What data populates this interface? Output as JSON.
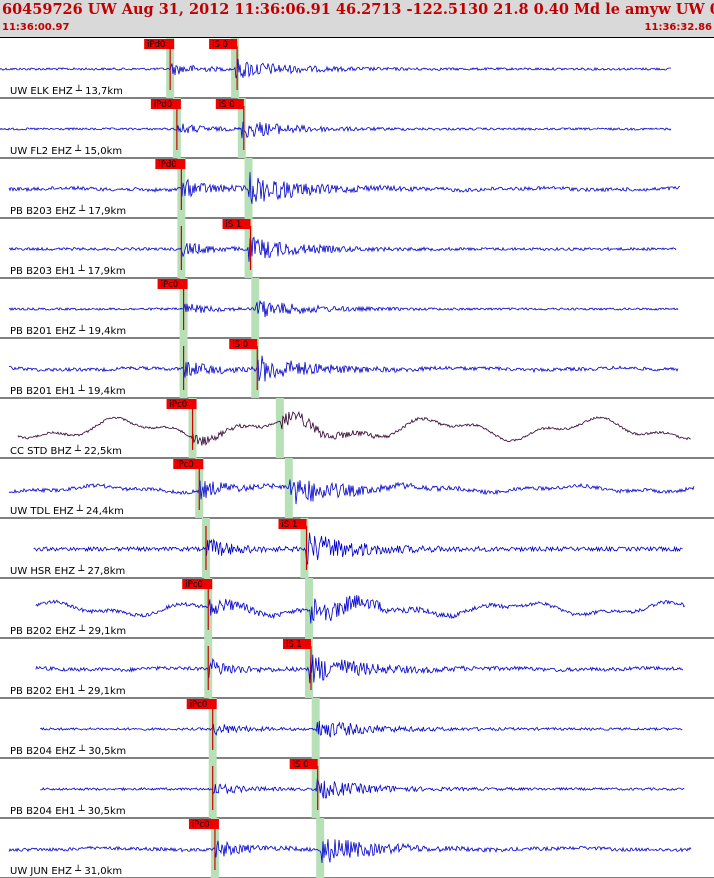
{
  "header": {
    "title": "60459726 UW Aug 31, 2012 11:36:06.91    46.2713 -122.5130 21.8 0.40 Md le amyw UW 01   3",
    "start_time": "11:36:00.97",
    "end_time": "11:36:32.86"
  },
  "colors": {
    "header_bg": "#d9d9d9",
    "header_text": "#c00000",
    "trace": "#0000cc",
    "trace_alt": "#330033",
    "pick_box": "#ee0000",
    "pick_band": "#b7e0b7",
    "pick_line": "#cc0000"
  },
  "chart_data": {
    "type": "line",
    "window": {
      "start": "11:36:00.97",
      "end": "11:36:32.86",
      "duration_s": 31.89
    },
    "traces": [
      {
        "label": "UW ELK EHZ",
        "distance": "13,7km",
        "p_pick": "iPd0",
        "s_pick": "iS 0",
        "p_time_s": 7.6,
        "s_time_s": 10.5,
        "amplitude": 0.6,
        "drift": 0.0,
        "start_s": 0.0,
        "end_s": 30.0
      },
      {
        "label": "UW FL2 EHZ",
        "distance": "15,0km",
        "p_pick": "iPd0",
        "s_pick": "iS 0",
        "p_time_s": 7.9,
        "s_time_s": 10.8,
        "amplitude": 0.55,
        "drift": 0.0,
        "start_s": 0.0,
        "end_s": 30.0
      },
      {
        "label": "PB B203 EHZ",
        "distance": "17,9km",
        "p_pick": "iPd0",
        "s_pick": "",
        "p_time_s": 8.1,
        "s_time_s": 11.1,
        "amplitude": 0.9,
        "drift": 0.1,
        "start_s": 0.4,
        "end_s": 30.4
      },
      {
        "label": "PB B203 EH1",
        "distance": "17,9km",
        "p_pick": "",
        "s_pick": "iS 1",
        "p_time_s": 8.1,
        "s_time_s": 11.1,
        "amplitude": 0.7,
        "drift": 0.0,
        "start_s": 0.4,
        "end_s": 30.2
      },
      {
        "label": "PB B201 EHZ",
        "distance": "19,4km",
        "p_pick": "iPc0",
        "s_pick": "",
        "p_time_s": 8.2,
        "s_time_s": 11.4,
        "amplitude": 0.55,
        "drift": 0.0,
        "start_s": 0.4,
        "end_s": 30.3
      },
      {
        "label": "PB B201 EH1",
        "distance": "19,4km",
        "p_pick": "",
        "s_pick": "iS 0",
        "p_time_s": 8.2,
        "s_time_s": 11.4,
        "amplitude": 0.85,
        "drift": 0.1,
        "start_s": 0.4,
        "end_s": 30.3
      },
      {
        "label": "CC STD BHZ",
        "distance": "22,5km",
        "p_pick": "iPc0",
        "s_pick": "",
        "p_time_s": 8.6,
        "s_time_s": 12.5,
        "amplitude": 0.55,
        "drift": 1.0,
        "start_s": 0.8,
        "end_s": 30.9
      },
      {
        "label": "UW TDL EHZ",
        "distance": "24,4km",
        "p_pick": "iPc0",
        "s_pick": "",
        "p_time_s": 8.9,
        "s_time_s": 12.9,
        "amplitude": 0.9,
        "drift": 0.3,
        "start_s": 0.4,
        "end_s": 31.0
      },
      {
        "label": "UW HSR EHZ",
        "distance": "27,8km",
        "p_pick": "",
        "s_pick": "iS 1",
        "p_time_s": 9.2,
        "s_time_s": 13.6,
        "amplitude": 1.0,
        "drift": 0.0,
        "start_s": 1.5,
        "end_s": 30.5
      },
      {
        "label": "PB B202 EHZ",
        "distance": "29,1km",
        "p_pick": "iPc0",
        "s_pick": "",
        "p_time_s": 9.3,
        "s_time_s": 13.8,
        "amplitude": 0.9,
        "drift": 0.6,
        "start_s": 1.6,
        "end_s": 30.6
      },
      {
        "label": "PB B202 EH1",
        "distance": "29,1km",
        "p_pick": "",
        "s_pick": "iS 1",
        "p_time_s": 9.3,
        "s_time_s": 13.8,
        "amplitude": 0.9,
        "drift": 0.1,
        "start_s": 1.6,
        "end_s": 30.5
      },
      {
        "label": "PB B204 EHZ",
        "distance": "30,5km",
        "p_pick": "iPc0",
        "s_pick": "",
        "p_time_s": 9.5,
        "s_time_s": 14.1,
        "amplitude": 0.6,
        "drift": 0.0,
        "start_s": 1.8,
        "end_s": 30.5
      },
      {
        "label": "PB B204 EH1",
        "distance": "30,5km",
        "p_pick": "",
        "s_pick": "iS 0",
        "p_time_s": 9.5,
        "s_time_s": 14.1,
        "amplitude": 0.6,
        "drift": 0.0,
        "start_s": 1.8,
        "end_s": 30.6
      },
      {
        "label": "UW JUN EHZ",
        "distance": "31,0km",
        "p_pick": "iPc0",
        "s_pick": "",
        "p_time_s": 9.6,
        "s_time_s": 14.3,
        "amplitude": 0.85,
        "drift": 0.1,
        "start_s": 0.4,
        "end_s": 30.9
      }
    ]
  }
}
